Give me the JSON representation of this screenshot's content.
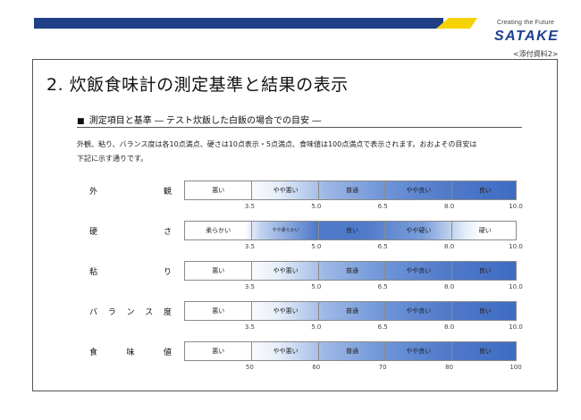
{
  "header": {
    "brand_tagline": "Creating the Future",
    "brand_name": "SATAKE",
    "attachment_label": "<添付資料2>",
    "colors": {
      "navy": "#1f3f86",
      "yellow": "#f6d300",
      "bar_blue": "#3f6cc3"
    }
  },
  "title": "2. 炊飯食味計の測定基準と結果の表示",
  "section": {
    "heading_marker": "■",
    "heading": "測定項目と基準 ― テスト炊飯した白飯の場合での目安 ―"
  },
  "description": [
    "外観、粘り、バランス度は各10点満点、硬さは10点表示・5点満点、食味値は100点満点で表示されます。おおよその目安は",
    "下記に示す通りです。"
  ],
  "rows": [
    {
      "label_chars": [
        "外",
        "観"
      ],
      "style": "grad",
      "segments": [
        "悪い",
        "やや悪い",
        "普通",
        "やや良い",
        "良い"
      ],
      "ticks": [
        "3.5",
        "5.0",
        "6.5",
        "8.0",
        "10.0"
      ]
    },
    {
      "label_chars": [
        "硬",
        "さ"
      ],
      "style": "hard",
      "segments": [
        "柔らかい",
        "やや柔らかい",
        "良い",
        "やや硬い",
        "硬い"
      ],
      "ticks": [
        "3.5",
        "5.0",
        "6.5",
        "8.0",
        "10.0"
      ]
    },
    {
      "label_chars": [
        "粘",
        "り"
      ],
      "style": "grad",
      "segments": [
        "悪い",
        "やや悪い",
        "普通",
        "やや良い",
        "良い"
      ],
      "ticks": [
        "3.5",
        "5.0",
        "6.5",
        "8.0",
        "10.0"
      ]
    },
    {
      "label_chars": [
        "バ",
        "ラ",
        "ン",
        "ス",
        "度"
      ],
      "style": "grad",
      "segments": [
        "悪い",
        "やや悪い",
        "普通",
        "やや良い",
        "良い"
      ],
      "ticks": [
        "3.5",
        "5.0",
        "6.5",
        "8.0",
        "10.0"
      ]
    },
    {
      "label_chars": [
        "食",
        "味",
        "値"
      ],
      "style": "grad",
      "segments": [
        "悪い",
        "やや悪い",
        "普通",
        "やや良い",
        "良い"
      ],
      "ticks": [
        "50",
        "60",
        "70",
        "80",
        "100"
      ]
    }
  ]
}
